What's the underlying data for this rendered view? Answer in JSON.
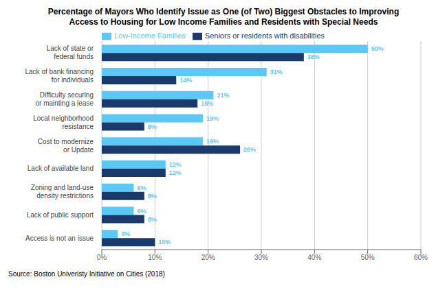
{
  "chart_data": {
    "type": "bar",
    "orientation": "horizontal",
    "title": "Percentage of Mayors Who Identify Issue as One (of Two) Biggest Obstacles to Improving\nAccess to Housing for Low Income Families and Residents with Special Needs",
    "categories": [
      "Lack of state or\nfederal funds",
      "Lack of bank financing\nfor individuals",
      "Difficulty securing\nor mainting a lease",
      "Local neighborhood\nresistance",
      "Cost to modernize\nor Update",
      "Lack of available land",
      "Zoning and land-use\ndensity restrictions",
      "Lack of public support",
      "Access is not an issue"
    ],
    "series": [
      {
        "name": "Low-Income Families",
        "color": "#5bc8f5",
        "values": [
          50,
          31,
          21,
          19,
          19,
          12,
          6,
          6,
          3
        ],
        "value_labels": [
          "50%",
          "31%",
          "21%",
          "19%",
          "19%",
          "12%",
          "6%",
          "6%",
          "3%"
        ]
      },
      {
        "name": "Seniors or residents with disabilities",
        "color": "#1a3a6b",
        "values": [
          38,
          14,
          18,
          8,
          26,
          12,
          8,
          8,
          10
        ],
        "value_labels": [
          "38%",
          "14%",
          "18%",
          "8%",
          "26%",
          "12%",
          "8%",
          "8%",
          "10%"
        ]
      }
    ],
    "xlim": [
      0,
      60
    ],
    "xticks": [
      {
        "value": 0,
        "label": "0%"
      },
      {
        "value": 10,
        "label": "10%"
      },
      {
        "value": 20,
        "label": "20%"
      },
      {
        "value": 30,
        "label": "30%"
      },
      {
        "value": 40,
        "label": "40%"
      },
      {
        "value": 50,
        "label": "50%"
      },
      {
        "value": 60,
        "label": "60%"
      }
    ],
    "grid": true,
    "legend": "top",
    "data_labels": true,
    "annotations": [
      "Source: Boston Univeristy Initiative on Cities (2018)"
    ]
  }
}
